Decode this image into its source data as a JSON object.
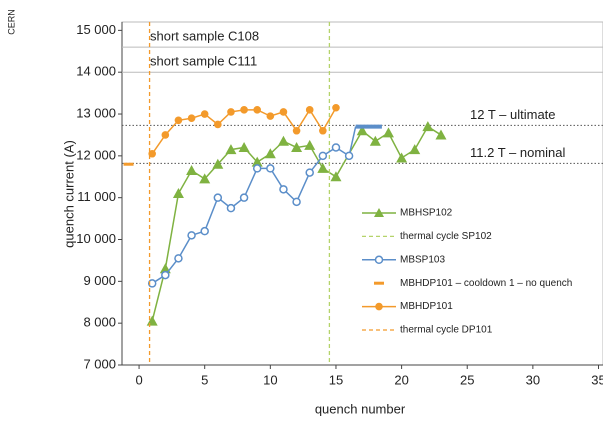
{
  "chart_data": {
    "type": "line",
    "source": "CERN",
    "xlabel": "quench number",
    "ylabel": "quench current (A)",
    "xlim": [
      -1.3,
      35
    ],
    "ylim": [
      7000,
      15200
    ],
    "xticks": [
      0,
      5,
      10,
      15,
      20,
      25,
      30,
      35
    ],
    "yticks": [
      {
        "value": 7000,
        "label": "7 000"
      },
      {
        "value": 8000,
        "label": "8 000"
      },
      {
        "value": 9000,
        "label": "9 000"
      },
      {
        "value": 10000,
        "label": "10 000"
      },
      {
        "value": 11000,
        "label": "11 000"
      },
      {
        "value": 12000,
        "label": "12 000"
      },
      {
        "value": 13000,
        "label": "13 000"
      },
      {
        "value": 14000,
        "label": "14 000"
      },
      {
        "value": 15000,
        "label": "15 000"
      }
    ],
    "reference_lines": [
      {
        "label": "short sample C108",
        "value": 14600,
        "style": "solid"
      },
      {
        "label": "short sample C111",
        "value": 14000,
        "style": "solid"
      },
      {
        "label": "12 T – ultimate",
        "value": 12730,
        "style": "dotted"
      },
      {
        "label": "11.2 T – nominal",
        "value": 11820,
        "style": "dotted"
      }
    ],
    "series": [
      {
        "name": "MBHSP102",
        "kind": "line",
        "marker": "triangle",
        "color": "#7fb241",
        "x": [
          1,
          2,
          3,
          4,
          5,
          6,
          7,
          8,
          9,
          10,
          11,
          12,
          13,
          14,
          15,
          17,
          18,
          19,
          20,
          21,
          22,
          23
        ],
        "values": [
          8050,
          9300,
          11100,
          11650,
          11450,
          11800,
          12150,
          12200,
          11850,
          12050,
          12350,
          12200,
          12250,
          11700,
          11500,
          12600,
          12350,
          12550,
          11950,
          12150,
          12700,
          12500
        ]
      },
      {
        "name": "thermal cycle SP102",
        "kind": "vline",
        "color": "#b5d36a",
        "x": [
          14.5
        ]
      },
      {
        "name": "MBSP103",
        "kind": "line",
        "marker": "circle",
        "color": "#5b8ec9",
        "x": [
          1,
          2,
          3,
          4,
          5,
          6,
          7,
          8,
          9,
          10,
          11,
          12,
          13,
          14,
          15,
          16
        ],
        "values": [
          8950,
          9150,
          9550,
          10100,
          10200,
          11000,
          10750,
          11000,
          11700,
          11700,
          11200,
          10900,
          11600,
          12000,
          12200,
          12000
        ],
        "no_quench_x": [
          16.5,
          18.5
        ],
        "no_quench_value": 12700
      },
      {
        "name": "MBHDP101 – cooldown 1 – no quench",
        "kind": "dash",
        "color": "#f39a2b",
        "x": [
          -0.8
        ],
        "values": [
          11800
        ]
      },
      {
        "name": "MBHDP101",
        "kind": "line",
        "marker": "dot",
        "color": "#f39a2b",
        "x": [
          1,
          2,
          3,
          4,
          5,
          6,
          7,
          8,
          9,
          10,
          11,
          12,
          13,
          14,
          15
        ],
        "values": [
          12050,
          12500,
          12850,
          12900,
          13000,
          12750,
          13050,
          13100,
          13100,
          12950,
          13050,
          12600,
          13100,
          12600,
          13150
        ]
      },
      {
        "name": "thermal cycle DP101",
        "kind": "vline",
        "color": "#f39a2b",
        "x": [
          0.8
        ]
      }
    ]
  }
}
